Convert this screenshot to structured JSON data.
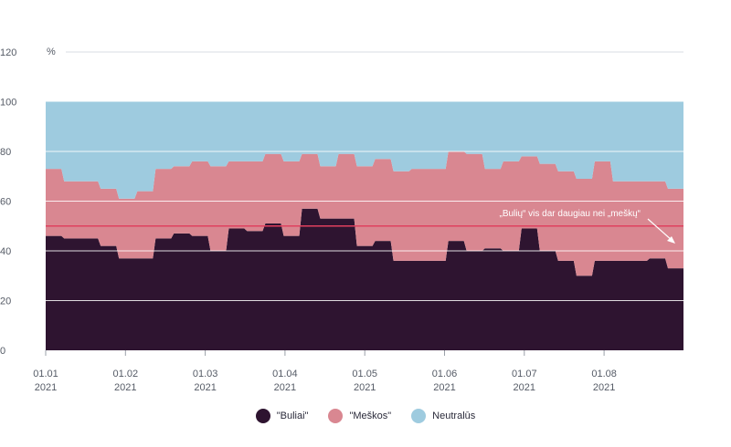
{
  "chart_data": {
    "type": "area",
    "stacked": true,
    "unit": "%",
    "ylim": [
      0,
      120
    ],
    "yticks": [
      0,
      20,
      40,
      60,
      80,
      100,
      120
    ],
    "xtick_labels": [
      {
        "date": "01.01",
        "year": "2021"
      },
      {
        "date": "01.02",
        "year": "2021"
      },
      {
        "date": "01.03",
        "year": "2021"
      },
      {
        "date": "01.04",
        "year": "2021"
      },
      {
        "date": "01.05",
        "year": "2021"
      },
      {
        "date": "01.06",
        "year": "2021"
      },
      {
        "date": "01.07",
        "year": "2021"
      },
      {
        "date": "01.08",
        "year": "2021"
      }
    ],
    "x": [
      "2021-01-01",
      "2021-01-07",
      "2021-01-14",
      "2021-01-21",
      "2021-01-28",
      "2021-02-04",
      "2021-02-11",
      "2021-02-18",
      "2021-02-25",
      "2021-03-04",
      "2021-03-11",
      "2021-03-18",
      "2021-03-25",
      "2021-04-01",
      "2021-04-08",
      "2021-04-15",
      "2021-04-22",
      "2021-04-29",
      "2021-05-06",
      "2021-05-13",
      "2021-05-20",
      "2021-05-27",
      "2021-06-03",
      "2021-06-10",
      "2021-06-17",
      "2021-06-24",
      "2021-07-01",
      "2021-07-08",
      "2021-07-15",
      "2021-07-22",
      "2021-07-29",
      "2021-08-05",
      "2021-08-12",
      "2021-08-19",
      "2021-08-26",
      "2021-09-02"
    ],
    "series": [
      {
        "name": "\"Buliai\"",
        "color": "#2e1430",
        "values": [
          46,
          45,
          45,
          42,
          37,
          37,
          45,
          47,
          46,
          40,
          49,
          48,
          51,
          46,
          57,
          53,
          53,
          42,
          44,
          36,
          36,
          36,
          44,
          40,
          41,
          40,
          49,
          40,
          36,
          30,
          36,
          36,
          36,
          37,
          33,
          40
        ]
      },
      {
        "name": "\"Meškos\"",
        "color": "#d98791",
        "values": [
          27,
          23,
          23,
          23,
          24,
          27,
          28,
          27,
          30,
          34,
          27,
          28,
          28,
          30,
          22,
          21,
          26,
          32,
          33,
          36,
          37,
          37,
          36,
          39,
          32,
          36,
          29,
          35,
          36,
          39,
          40,
          32,
          32,
          31,
          32,
          27
        ]
      },
      {
        "name": "Neutralūs",
        "color": "#9ecbdf",
        "values": [
          27,
          32,
          32,
          35,
          39,
          36,
          27,
          26,
          24,
          26,
          24,
          24,
          21,
          24,
          21,
          26,
          21,
          26,
          23,
          28,
          27,
          27,
          20,
          21,
          27,
          24,
          22,
          25,
          28,
          31,
          24,
          32,
          32,
          32,
          35,
          33
        ]
      }
    ],
    "reference_line": {
      "value": 50,
      "color": "#e0405e"
    },
    "annotation": "„Bulių“ vis dar daugiau nei „meškų“",
    "legend_position": "bottom"
  }
}
